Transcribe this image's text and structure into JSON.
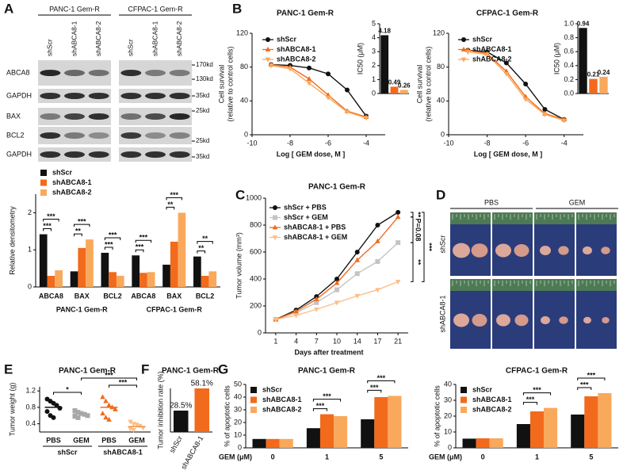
{
  "panel_labels": [
    "A",
    "B",
    "C",
    "D",
    "E",
    "F",
    "G"
  ],
  "blot": {
    "headers": [
      "PANC-1 Gem-R",
      "CFPAC-1 Gem-R"
    ],
    "lanes": [
      "shScr",
      "shABCA8-1",
      "shABCA8-2"
    ],
    "rows": [
      "ABCA8",
      "GAPDH",
      "BAX",
      "BCL2",
      "GAPDH"
    ],
    "sizes": [
      "170kd",
      "130kd",
      "35kd",
      "25kd",
      "25kd",
      "35kd"
    ]
  },
  "photo": {
    "columns": [
      "PBS",
      "GEM"
    ],
    "rows": [
      "shScr",
      "shABCA8-1"
    ]
  },
  "chart_data": [
    {
      "type": "bar",
      "ylabel": "Relative densitometry",
      "categories": [
        "ABCA8",
        "BAX",
        "BCL2",
        "ABCA8",
        "BAX",
        "BCL2"
      ],
      "group_labels": [
        "PANC-1 Gem-R",
        "CFPAC-1 Gem-R"
      ],
      "series": [
        {
          "name": "shScr",
          "color": "#111111",
          "values": [
            1.42,
            0.42,
            0.92,
            0.85,
            0.6,
            0.82
          ]
        },
        {
          "name": "shABCA8-1",
          "color": "#f26a1b",
          "values": [
            0.3,
            1.05,
            0.4,
            0.38,
            1.22,
            0.3
          ]
        },
        {
          "name": "shABCA8-2",
          "color": "#f9a95c",
          "values": [
            0.45,
            1.28,
            0.3,
            0.4,
            2.0,
            0.42
          ]
        }
      ],
      "ylim": [
        0,
        2.5
      ],
      "yticks": [
        0,
        1,
        2
      ],
      "annotations": [
        "***",
        "***",
        "***",
        "**",
        "***",
        "***",
        "***",
        "***",
        "***",
        "**",
        "**",
        "**"
      ]
    },
    {
      "type": "line",
      "title": "PANC-1 Gem-R",
      "ylabel": [
        "Cell survival",
        "(relative to control cells)"
      ],
      "xlabel": "Log [ GEM dose, M ]",
      "x": [
        -9,
        -8,
        -7,
        -6,
        -5,
        -4
      ],
      "series": [
        {
          "name": "shScr",
          "color": "#111111",
          "values": [
            83,
            82,
            79,
            72,
            53,
            22
          ]
        },
        {
          "name": "shABCA8-1",
          "color": "#f26a1b",
          "values": [
            83,
            80,
            66,
            47,
            28,
            21
          ]
        },
        {
          "name": "shABCA8-2",
          "color": "#f9a95c",
          "values": [
            82,
            78,
            61,
            44,
            27,
            20
          ]
        }
      ],
      "xlim": [
        -10,
        -3
      ],
      "xticks": [
        -10,
        -8,
        -6,
        -4
      ],
      "ylim": [
        0,
        120
      ],
      "yticks": [
        0,
        40,
        80,
        120
      ]
    },
    {
      "type": "bar",
      "ylabel": "IC50 (μM)",
      "values": [
        4.18,
        0.49,
        0.26
      ],
      "colors": [
        "#111111",
        "#f26a1b",
        "#f9a95c"
      ],
      "ylim": [
        0,
        5
      ],
      "yticks": [
        0,
        1,
        2,
        3,
        4,
        5
      ]
    },
    {
      "type": "line",
      "title": "CFPAC-1 Gem-R",
      "ylabel": [
        "Cell survival",
        "(relative to control cells)"
      ],
      "xlabel": "Log [ GEM dose, M ]",
      "x": [
        -9,
        -8,
        -7,
        -6,
        -5,
        -4
      ],
      "series": [
        {
          "name": "shScr",
          "color": "#111111",
          "values": [
            100,
            98,
            85,
            60,
            30,
            18
          ]
        },
        {
          "name": "shABCA8-1",
          "color": "#f26a1b",
          "values": [
            100,
            96,
            75,
            45,
            25,
            18
          ]
        },
        {
          "name": "shABCA8-2",
          "color": "#f9a95c",
          "values": [
            98,
            95,
            72,
            42,
            24,
            17
          ]
        }
      ],
      "xlim": [
        -10,
        -3
      ],
      "xticks": [
        -10,
        -8,
        -6,
        -4
      ],
      "ylim": [
        0,
        120
      ],
      "yticks": [
        0,
        40,
        80,
        120
      ]
    },
    {
      "type": "bar",
      "ylabel": "IC50 (μM)",
      "values": [
        0.94,
        0.21,
        0.24
      ],
      "colors": [
        "#111111",
        "#f26a1b",
        "#f9a95c"
      ],
      "ylim": [
        0,
        1
      ],
      "yticks": [
        {
          "value": 0,
          "label": "0.0"
        },
        0.2,
        0.4,
        0.6,
        0.8,
        {
          "value": 1,
          "label": "1.0"
        }
      ]
    },
    {
      "type": "line",
      "title": "PANC-1 Gem-R",
      "ylabel": "Tumor volume (mm³)",
      "xlabel": "Days after treatment",
      "categories": [
        "1",
        "4",
        "7",
        "10",
        "14",
        "17",
        "21"
      ],
      "series": [
        {
          "name": "shScr + PBS",
          "color": "#111111",
          "values": [
            100,
            170,
            270,
            400,
            600,
            800,
            895
          ]
        },
        {
          "name": "shScr + GEM",
          "color": "#c4c4c4",
          "values": [
            100,
            150,
            225,
            320,
            440,
            530,
            670
          ]
        },
        {
          "name": "shABCA8-1 + PBS",
          "color": "#f26a1b",
          "values": [
            100,
            160,
            250,
            370,
            540,
            680,
            860
          ]
        },
        {
          "name": "shABCA8-1 + GEM",
          "color": "#fbbf86",
          "values": [
            100,
            130,
            175,
            225,
            275,
            320,
            380
          ]
        }
      ],
      "ylim": [
        0,
        1000
      ],
      "yticks": [
        0,
        200,
        400,
        600,
        800,
        1000
      ],
      "annotations": [
        "**",
        "P=0.08",
        "**",
        "***"
      ]
    },
    {
      "type": "dot",
      "title": "PANC-1 Gem-R",
      "ylabel": "Tumor weight (g)",
      "categories": [
        "PBS",
        "GEM",
        "PBS",
        "GEM"
      ],
      "group_labels": [
        "shScr",
        "shABCA8-1"
      ],
      "colors": [
        "#111111",
        "#a8a8a8",
        "#f26a1b",
        "#fbbf86"
      ],
      "values": [
        [
          1.0,
          0.95,
          0.9,
          0.85,
          0.78,
          0.7,
          0.6,
          0.55
        ],
        [
          0.72,
          0.68,
          0.65,
          0.63,
          0.6,
          0.58,
          0.55
        ],
        [
          1.05,
          0.95,
          0.85,
          0.8,
          0.75,
          0.65,
          0.55,
          0.5
        ],
        [
          0.45,
          0.4,
          0.38,
          0.35,
          0.3,
          0.28,
          0.25
        ]
      ],
      "means": [
        0.8,
        0.64,
        0.8,
        0.33
      ],
      "ylim": [
        0.2,
        1.3
      ],
      "yticks": [
        0.4,
        0.8,
        1.2
      ],
      "annotations": [
        "*",
        "***",
        "***"
      ]
    },
    {
      "type": "bar",
      "title": "PANC-1 Gem-R",
      "ylabel": "Tumor inhibition rate (%)",
      "categories": [
        "shScr",
        "shABCA8-1"
      ],
      "values": [
        28.5,
        58.1
      ],
      "value_labels": [
        "28.5%",
        "58.1%"
      ],
      "colors": [
        "#111111",
        "#f26a1b"
      ]
    },
    {
      "type": "bar",
      "title": "PANC-1 Gem-R",
      "ylabel": "% of apoptotic cells",
      "xlabel": "GEM (μM)",
      "categories": [
        "0",
        "1",
        "5"
      ],
      "series": [
        {
          "name": "shScr",
          "color": "#111111",
          "values": [
            7,
            15.5,
            22.5
          ]
        },
        {
          "name": "shABCA8-1",
          "color": "#f26a1b",
          "values": [
            7,
            26.5,
            40
          ]
        },
        {
          "name": "shABCA8-2",
          "color": "#f9a95c",
          "values": [
            7,
            25,
            41
          ]
        }
      ],
      "ylim": [
        0,
        50
      ],
      "yticks": [
        0,
        10,
        20,
        30,
        40,
        50
      ],
      "annotations": [
        "***",
        "***",
        "***",
        "***"
      ]
    },
    {
      "type": "bar",
      "title": "CFPAC-1 Gem-R",
      "ylabel": "% of apoptotic cells",
      "xlabel": "GEM (μM)",
      "categories": [
        "0",
        "1",
        "5"
      ],
      "series": [
        {
          "name": "shScr",
          "color": "#111111",
          "values": [
            5.8,
            15,
            21
          ]
        },
        {
          "name": "shABCA8-1",
          "color": "#f26a1b",
          "values": [
            6,
            23,
            32.5
          ]
        },
        {
          "name": "shABCA8-2",
          "color": "#f9a95c",
          "values": [
            6,
            25.2,
            34.5
          ]
        }
      ],
      "ylim": [
        0,
        40
      ],
      "yticks": [
        0,
        10,
        20,
        30,
        40
      ],
      "annotations": [
        "***",
        "***",
        "***",
        "***"
      ]
    }
  ]
}
